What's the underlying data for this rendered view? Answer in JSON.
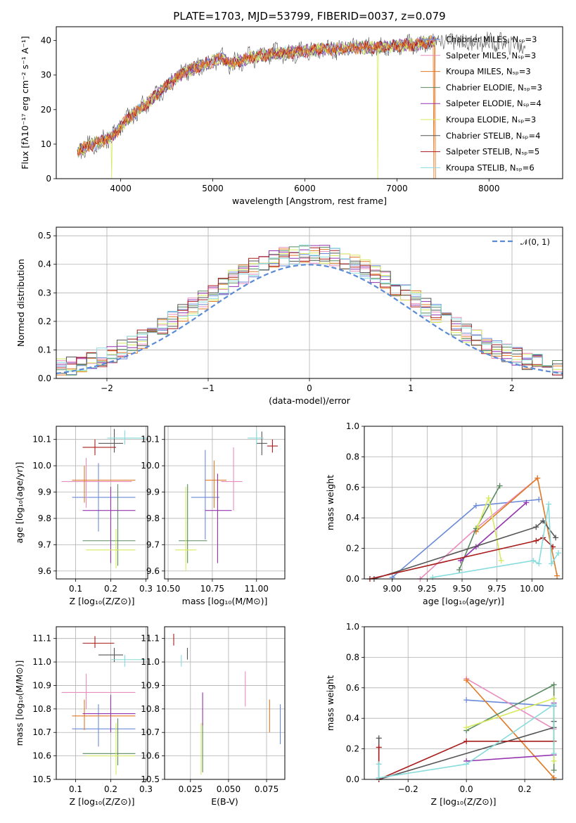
{
  "colors": [
    "#6a8ad8",
    "#e98cbf",
    "#e07a26",
    "#5a8a60",
    "#9433b0",
    "#d7ea5f",
    "#555555",
    "#a81c1c",
    "#88dcdc"
  ],
  "chart_data": [
    {
      "id": "spectrum",
      "type": "line",
      "title": "PLATE=1703, MJD=53799, FIBERID=0037, z=0.079",
      "xlabel": "wavelength [Angstrom, rest frame]",
      "ylabel": "Flux [fλ10⁻¹⁷ erg cm⁻² s⁻¹ A⁻¹]",
      "xlim": [
        3300,
        8800
      ],
      "ylim": [
        0,
        44
      ],
      "xticks": [
        "4000",
        "5000",
        "6000",
        "7000",
        "8000"
      ],
      "yticks": [
        "0",
        "10",
        "20",
        "30",
        "40"
      ],
      "grid": false,
      "legend_position": "right",
      "legend": [
        "Chabrier MILES, Nₛₚ=3",
        "Salpeter MILES, Nₛₚ=3",
        "Kroupa MILES, Nₛₚ=3",
        "Chabrier ELODIE, Nₛₚ=3",
        "Salpeter ELODIE, Nₛₚ=4",
        "Kroupa ELODIE, Nₛₚ=3",
        "Chabrier STELIB, Nₛₚ=4",
        "Salpeter STELIB, Nₛₚ=5",
        "Kroupa STELIB, Nₛₚ=6"
      ],
      "continuum": {
        "x": [
          3530,
          3700,
          3900,
          4000,
          4100,
          4300,
          4500,
          4700,
          4900,
          5100,
          5200,
          5400,
          5600,
          5800,
          6000,
          6200,
          6400,
          6600,
          6800,
          7000,
          7200,
          7400,
          7600,
          7800,
          8000,
          8200,
          8400
        ],
        "y": [
          8,
          10,
          12,
          15,
          18,
          22,
          27,
          31,
          33,
          35,
          33,
          35,
          36,
          36.5,
          37,
          37.5,
          37.5,
          38,
          38,
          38.5,
          39,
          39.5,
          40,
          39.5,
          39.5,
          39,
          38.5
        ]
      },
      "drops": [
        {
          "series": 5,
          "x": 3900
        },
        {
          "series": 5,
          "x": 6790
        },
        {
          "series": 2,
          "x": 7400
        }
      ]
    },
    {
      "id": "residuals",
      "type": "step",
      "xlabel": "(data-model)/error",
      "ylabel": "Normed distribution",
      "xlim": [
        -2.5,
        2.5
      ],
      "ylim": [
        0,
        0.53
      ],
      "xticks": [
        "−2",
        "−1",
        "0",
        "1",
        "2"
      ],
      "xtick_values": [
        -2,
        -1,
        0,
        1,
        2
      ],
      "yticks": [
        "0.0",
        "0.1",
        "0.2",
        "0.3",
        "0.4",
        "0.5"
      ],
      "ytick_values": [
        0,
        0.1,
        0.2,
        0.3,
        0.4,
        0.5
      ],
      "grid": true,
      "bin_width": 0.1,
      "legend": [
        "𝒩(0, 1)"
      ],
      "legend_position": "top-right",
      "normal_curve": {
        "mean": 0,
        "sigma": 1,
        "color": "#5b8ad6"
      }
    },
    {
      "id": "age-vs-Z",
      "type": "errorbar",
      "xlabel": "Z [log₁₀(Z/Z⊙)]",
      "ylabel": "age  [log₁₀(age/yr)]",
      "xlim": [
        0.045,
        0.305
      ],
      "ylim": [
        9.57,
        10.15
      ],
      "xticks": [
        "0.1",
        "0.2",
        "0.3"
      ],
      "xtick_values": [
        0.1,
        0.2,
        0.3
      ],
      "yticks": [
        "9.6",
        "9.7",
        "9.8",
        "9.9",
        "10.0",
        "10.1"
      ],
      "ytick_values": [
        9.6,
        9.7,
        9.8,
        9.9,
        10.0,
        10.1
      ],
      "grid": true,
      "points": [
        {
          "s": 0,
          "x": 0.165,
          "y": 9.88,
          "xlo": 0.09,
          "xhi": 0.27,
          "ylo": 9.75,
          "yhi": 10.01
        },
        {
          "s": 1,
          "x": 0.13,
          "y": 9.94,
          "xlo": 0.06,
          "xhi": 0.26,
          "ylo": 9.84,
          "yhi": 10.03
        },
        {
          "s": 2,
          "x": 0.125,
          "y": 9.945,
          "xlo": 0.09,
          "xhi": 0.27,
          "ylo": 9.86,
          "yhi": 10.0
        },
        {
          "s": 3,
          "x": 0.22,
          "y": 9.715,
          "xlo": 0.12,
          "xhi": 0.27,
          "ylo": 9.62,
          "yhi": 9.93
        },
        {
          "s": 4,
          "x": 0.2,
          "y": 9.83,
          "xlo": 0.12,
          "xhi": 0.27,
          "ylo": 9.63,
          "yhi": 9.92
        },
        {
          "s": 5,
          "x": 0.215,
          "y": 9.68,
          "xlo": 0.13,
          "xhi": 0.27,
          "ylo": 9.61,
          "yhi": 9.76
        },
        {
          "s": 6,
          "x": 0.21,
          "y": 10.085,
          "xlo": 0.165,
          "xhi": 0.235,
          "ylo": 10.05,
          "yhi": 10.14
        },
        {
          "s": 7,
          "x": 0.155,
          "y": 10.07,
          "xlo": 0.12,
          "xhi": 0.215,
          "ylo": 10.04,
          "yhi": 10.1
        },
        {
          "s": 8,
          "x": 0.24,
          "y": 10.105,
          "xlo": 0.19,
          "xhi": 0.3,
          "ylo": 10.08,
          "yhi": 10.135
        }
      ]
    },
    {
      "id": "age-vs-mass",
      "type": "errorbar",
      "xlabel": "mass [log₁₀(M/M⊙)]",
      "ylabel": "",
      "xlim": [
        10.48,
        11.16
      ],
      "ylim": [
        9.57,
        10.15
      ],
      "xticks": [
        "10.50",
        "10.75",
        "11.00"
      ],
      "xtick_values": [
        10.5,
        10.75,
        11.0
      ],
      "yticks": [
        "9.6",
        "9.7",
        "9.8",
        "9.9",
        "10.0",
        "10.1"
      ],
      "ytick_values": [
        9.6,
        9.7,
        9.8,
        9.9,
        10.0,
        10.1
      ],
      "grid": true,
      "points": [
        {
          "s": 0,
          "x": 10.71,
          "y": 9.88,
          "xlo": 10.63,
          "xhi": 10.79,
          "ylo": 9.72,
          "yhi": 10.06
        },
        {
          "s": 1,
          "x": 10.87,
          "y": 9.94,
          "xlo": 10.8,
          "xhi": 10.92,
          "ylo": 9.83,
          "yhi": 10.07
        },
        {
          "s": 2,
          "x": 10.76,
          "y": 9.945,
          "xlo": 10.71,
          "xhi": 10.83,
          "ylo": 9.84,
          "yhi": 10.02
        },
        {
          "s": 3,
          "x": 10.61,
          "y": 9.715,
          "xlo": 10.56,
          "xhi": 10.72,
          "ylo": 9.63,
          "yhi": 9.93
        },
        {
          "s": 4,
          "x": 10.78,
          "y": 9.83,
          "xlo": 10.71,
          "xhi": 10.86,
          "ylo": 9.63,
          "yhi": 9.97
        },
        {
          "s": 5,
          "x": 10.6,
          "y": 9.68,
          "xlo": 10.54,
          "xhi": 10.66,
          "ylo": 9.6,
          "yhi": 9.92
        },
        {
          "s": 6,
          "x": 11.03,
          "y": 10.085,
          "xlo": 11.0,
          "xhi": 11.06,
          "ylo": 10.04,
          "yhi": 10.13
        },
        {
          "s": 7,
          "x": 11.09,
          "y": 10.075,
          "xlo": 11.06,
          "xhi": 11.12,
          "ylo": 10.05,
          "yhi": 10.1
        },
        {
          "s": 8,
          "x": 11.0,
          "y": 10.105,
          "xlo": 10.95,
          "xhi": 11.04,
          "ylo": 10.08,
          "yhi": 10.135
        }
      ]
    },
    {
      "id": "massweight-vs-age",
      "type": "line",
      "xlabel": "age  [log₁₀(age/yr)]",
      "ylabel": "mass weight",
      "xlim": [
        8.8,
        10.22
      ],
      "ylim": [
        0,
        1.0
      ],
      "xticks": [
        "9.00",
        "9.25",
        "9.50",
        "9.75",
        "10.00"
      ],
      "xtick_values": [
        9.0,
        9.25,
        9.5,
        9.75,
        10.0
      ],
      "yticks": [
        "0.0",
        "0.2",
        "0.4",
        "0.6",
        "0.8",
        "1.0"
      ],
      "ytick_values": [
        0,
        0.2,
        0.4,
        0.6,
        0.8,
        1.0
      ],
      "grid": true,
      "series": [
        {
          "s": 0,
          "x": [
            9.0,
            9.6,
            10.05
          ],
          "y": [
            0.01,
            0.48,
            0.52
          ]
        },
        {
          "s": 1,
          "x": [
            9.2,
            9.6,
            10.04
          ],
          "y": [
            0.0,
            0.33,
            0.66
          ]
        },
        {
          "s": 2,
          "x": [
            9.6,
            10.04,
            10.18
          ],
          "y": [
            0.31,
            0.66,
            0.02
          ]
        },
        {
          "s": 3,
          "x": [
            9.48,
            9.6,
            9.77
          ],
          "y": [
            0.06,
            0.33,
            0.61
          ]
        },
        {
          "s": 4,
          "x": [
            9.49,
            9.6,
            9.96
          ],
          "y": [
            0.12,
            0.21,
            0.5
          ]
        },
        {
          "s": 5,
          "x": [
            9.61,
            9.69,
            9.78
          ],
          "y": [
            0.34,
            0.53,
            0.12
          ]
        },
        {
          "s": 6,
          "x": [
            8.87,
            10.03,
            10.08,
            10.17
          ],
          "y": [
            0.0,
            0.34,
            0.38,
            0.27
          ]
        },
        {
          "s": 7,
          "x": [
            8.84,
            10.03,
            10.08,
            10.15
          ],
          "y": [
            0.0,
            0.25,
            0.27,
            0.21
          ]
        },
        {
          "s": 8,
          "x": [
            9.29,
            10.01,
            10.05,
            10.12,
            10.14,
            10.19
          ],
          "y": [
            0.01,
            0.12,
            0.1,
            0.49,
            0.1,
            0.17
          ]
        }
      ]
    },
    {
      "id": "mass-vs-Z",
      "type": "errorbar",
      "xlabel": "Z [log₁₀(Z/Z⊙)]",
      "ylabel": "mass [log₁₀(M/M⊙)]",
      "xlim": [
        0.045,
        0.305
      ],
      "ylim": [
        10.5,
        11.15
      ],
      "xticks": [
        "0.1",
        "0.2",
        "0.3"
      ],
      "xtick_values": [
        0.1,
        0.2,
        0.3
      ],
      "yticks": [
        "10.5",
        "10.6",
        "10.7",
        "10.8",
        "10.9",
        "11.0",
        "11.1"
      ],
      "ytick_values": [
        10.5,
        10.6,
        10.7,
        10.8,
        10.9,
        11.0,
        11.1
      ],
      "grid": true,
      "points": [
        {
          "s": 0,
          "x": 0.165,
          "y": 10.715,
          "xlo": 0.09,
          "xhi": 0.27,
          "ylo": 10.64,
          "yhi": 10.82
        },
        {
          "s": 1,
          "x": 0.13,
          "y": 10.87,
          "xlo": 0.06,
          "xhi": 0.27,
          "ylo": 10.8,
          "yhi": 10.95
        },
        {
          "s": 2,
          "x": 0.125,
          "y": 10.77,
          "xlo": 0.09,
          "xhi": 0.27,
          "ylo": 10.71,
          "yhi": 10.84
        },
        {
          "s": 3,
          "x": 0.22,
          "y": 10.61,
          "xlo": 0.12,
          "xhi": 0.27,
          "ylo": 10.56,
          "yhi": 10.76
        },
        {
          "s": 4,
          "x": 0.2,
          "y": 10.78,
          "xlo": 0.12,
          "xhi": 0.27,
          "ylo": 10.7,
          "yhi": 10.86
        },
        {
          "s": 5,
          "x": 0.215,
          "y": 10.6,
          "xlo": 0.13,
          "xhi": 0.27,
          "ylo": 10.52,
          "yhi": 10.74
        },
        {
          "s": 6,
          "x": 0.21,
          "y": 11.03,
          "xlo": 0.165,
          "xhi": 0.235,
          "ylo": 11.0,
          "yhi": 11.06
        },
        {
          "s": 7,
          "x": 0.155,
          "y": 11.08,
          "xlo": 0.12,
          "xhi": 0.21,
          "ylo": 11.06,
          "yhi": 11.11
        },
        {
          "s": 8,
          "x": 0.24,
          "y": 11.01,
          "xlo": 0.2,
          "xhi": 0.3,
          "ylo": 10.98,
          "yhi": 11.03
        }
      ]
    },
    {
      "id": "mass-vs-ebv",
      "type": "errorbar",
      "xlabel": "E(B-V)",
      "ylabel": "",
      "xlim": [
        0.008,
        0.087
      ],
      "ylim": [
        10.5,
        11.15
      ],
      "xticks": [
        "0.025",
        "0.050",
        "0.075"
      ],
      "xtick_values": [
        0.025,
        0.05,
        0.075
      ],
      "yticks": [
        "10.5",
        "10.6",
        "10.7",
        "10.8",
        "10.9",
        "11.0",
        "11.1"
      ],
      "ytick_values": [
        10.5,
        10.6,
        10.7,
        10.8,
        10.9,
        11.0,
        11.1
      ],
      "grid": true,
      "points": [
        {
          "s": 0,
          "x": 0.084,
          "y": 10.73,
          "xlo": 0.084,
          "xhi": 0.084,
          "ylo": 10.65,
          "yhi": 10.82
        },
        {
          "s": 1,
          "x": 0.061,
          "y": 10.88,
          "xlo": 0.061,
          "xhi": 0.061,
          "ylo": 10.81,
          "yhi": 10.96
        },
        {
          "s": 2,
          "x": 0.077,
          "y": 10.77,
          "xlo": 0.077,
          "xhi": 0.077,
          "ylo": 10.7,
          "yhi": 10.84
        },
        {
          "s": 3,
          "x": 0.033,
          "y": 10.66,
          "xlo": 0.033,
          "xhi": 0.033,
          "ylo": 10.53,
          "yhi": 10.74
        },
        {
          "s": 4,
          "x": 0.033,
          "y": 10.8,
          "xlo": 0.033,
          "xhi": 0.033,
          "ylo": 10.73,
          "yhi": 10.87
        },
        {
          "s": 5,
          "x": 0.032,
          "y": 10.63,
          "xlo": 0.032,
          "xhi": 0.032,
          "ylo": 10.52,
          "yhi": 10.74
        },
        {
          "s": 6,
          "x": 0.023,
          "y": 11.03,
          "xlo": 0.023,
          "xhi": 0.023,
          "ylo": 11.01,
          "yhi": 11.06
        },
        {
          "s": 7,
          "x": 0.014,
          "y": 11.09,
          "xlo": 0.014,
          "xhi": 0.014,
          "ylo": 11.07,
          "yhi": 11.12
        },
        {
          "s": 8,
          "x": 0.019,
          "y": 11.0,
          "xlo": 0.019,
          "xhi": 0.019,
          "ylo": 10.98,
          "yhi": 11.03
        }
      ]
    },
    {
      "id": "massweight-vs-Z",
      "type": "line",
      "xlabel": "Z [log₁₀(Z/Z⊙)]",
      "ylabel": "mass weight",
      "xlim": [
        -0.35,
        0.33
      ],
      "ylim": [
        0,
        1.0
      ],
      "xticks": [
        "−0.2",
        "0.0",
        "0.2"
      ],
      "xtick_values": [
        -0.2,
        0.0,
        0.2
      ],
      "yticks": [
        "0.0",
        "0.2",
        "0.4",
        "0.6",
        "0.8",
        "1.0"
      ],
      "ytick_values": [
        0,
        0.2,
        0.4,
        0.6,
        0.8,
        1.0
      ],
      "grid": true,
      "series": [
        {
          "s": 0,
          "x": [
            0.0,
            0.3
          ],
          "y": [
            0.52,
            0.48
          ]
        },
        {
          "s": 1,
          "x": [
            0.0,
            0.3
          ],
          "y": [
            0.66,
            0.33
          ]
        },
        {
          "s": 2,
          "x": [
            0.0,
            0.3
          ],
          "y": [
            0.65,
            0.01
          ]
        },
        {
          "s": 3,
          "x": [
            0.0,
            0.3,
            0.3
          ],
          "y": [
            0.32,
            0.62,
            0.06
          ]
        },
        {
          "s": 4,
          "x": [
            0.0,
            0.3,
            0.3
          ],
          "y": [
            0.12,
            0.16,
            0.5
          ]
        },
        {
          "s": 5,
          "x": [
            0.0,
            0.3,
            0.3
          ],
          "y": [
            0.34,
            0.53,
            0.12
          ]
        },
        {
          "s": 6,
          "x": [
            -0.3,
            -0.3,
            0.3,
            0.3
          ],
          "y": [
            0.27,
            0.0,
            0.34,
            0.38
          ]
        },
        {
          "s": 7,
          "x": [
            -0.3,
            -0.3,
            0.0,
            0.3
          ],
          "y": [
            0.21,
            0.0,
            0.25,
            0.25
          ]
        },
        {
          "s": 8,
          "x": [
            -0.3,
            -0.3,
            0.0,
            0.3,
            0.3
          ],
          "y": [
            0.1,
            0.01,
            0.1,
            0.49,
            0.17
          ]
        }
      ]
    }
  ]
}
